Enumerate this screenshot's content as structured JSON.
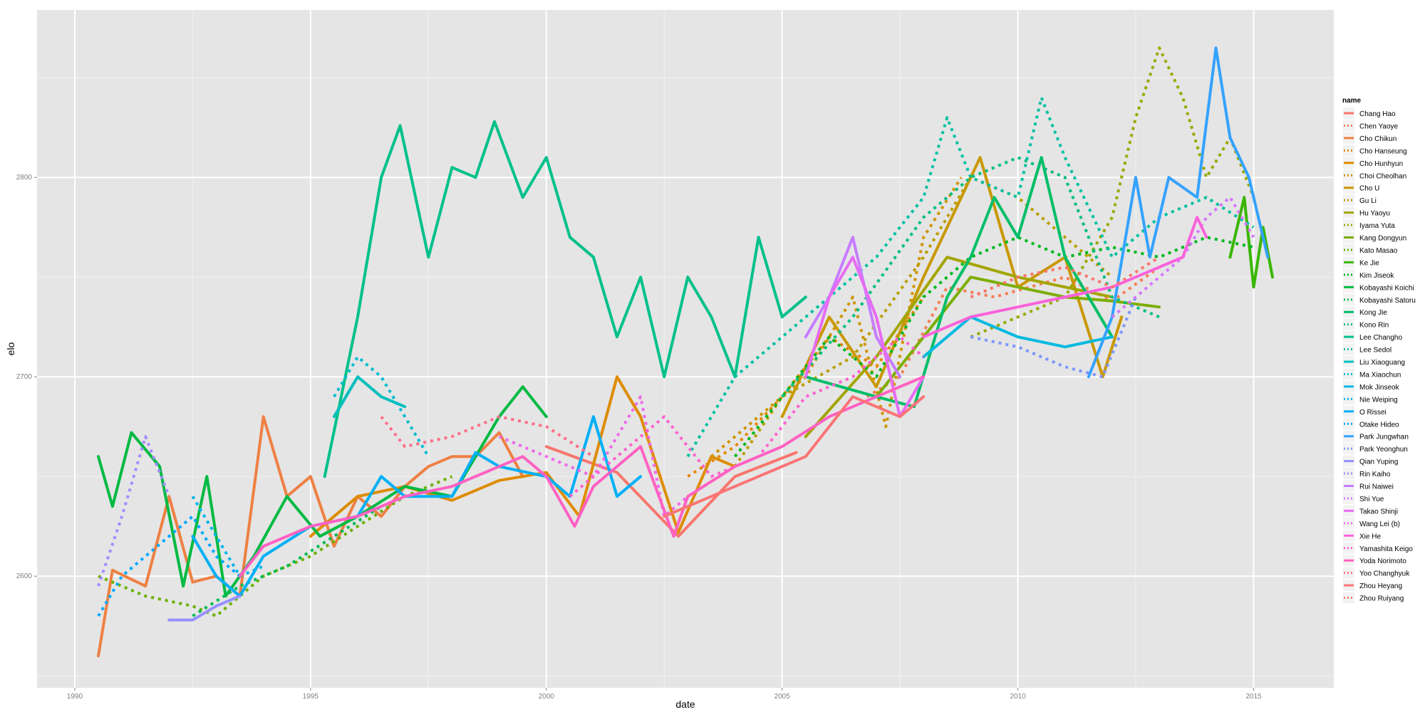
{
  "chart_data": {
    "type": "line",
    "xlabel": "date",
    "ylabel": "elo",
    "xlim": [
      1989.2,
      2016.7
    ],
    "ylim": [
      2544,
      2884
    ],
    "x_ticks": [
      1990,
      1995,
      2000,
      2005,
      2010,
      2015
    ],
    "x_tick_labels": [
      "1990",
      "1995",
      "2000",
      "2005",
      "2010",
      "2015"
    ],
    "y_ticks": [
      2600,
      2700,
      2800
    ],
    "y_tick_labels": [
      "2600",
      "2700",
      "2800"
    ],
    "grid": true,
    "legend": {
      "title": "name",
      "placement": "right"
    },
    "series": [
      {
        "name": "Chang Hao",
        "color": "#F8766D",
        "dashed": false,
        "x": [
          2000.0,
          2001.5,
          2002.8,
          2004.0,
          2005.3
        ],
        "y": [
          2665,
          2652,
          2620,
          2650,
          2662
        ]
      },
      {
        "name": "Chen Yaoye",
        "color": "#F57E56",
        "dashed": true,
        "x": [
          2006.8,
          2007.5,
          2008.5,
          2009.5,
          2011.0,
          2012.0,
          2013.0
        ],
        "y": [
          2690,
          2700,
          2745,
          2740,
          2750,
          2738,
          2755
        ]
      },
      {
        "name": "Cho Chikun",
        "color": "#EE8043",
        "dashed": false,
        "x": [
          1990.5,
          1990.8,
          1991.5,
          1992.0,
          1992.5,
          1993.0,
          1993.5,
          1994.0,
          1994.5,
          1995.0,
          1995.5,
          1996.0,
          1996.5,
          1997.0,
          1997.5,
          1998.0,
          1998.5,
          1999.0,
          1999.5
        ],
        "y": [
          2560,
          2603,
          2595,
          2640,
          2597,
          2600,
          2590,
          2680,
          2640,
          2650,
          2615,
          2640,
          2630,
          2645,
          2655,
          2660,
          2660,
          2672,
          2650
        ]
      },
      {
        "name": "Cho Hanseung",
        "color": "#E58700",
        "dashed": true,
        "x": [
          2003.0,
          2004.0,
          2005.0,
          2006.0,
          2007.0,
          2008.0
        ],
        "y": [
          2650,
          2665,
          2690,
          2720,
          2705,
          2740
        ]
      },
      {
        "name": "Cho Hunhyun",
        "color": "#DE8C00",
        "dashed": false,
        "x": [
          1995.0,
          1996.0,
          1997.0,
          1998.0,
          1999.0,
          2000.0,
          2000.7,
          2001.5,
          2002.0,
          2002.8,
          2003.5,
          2004.0
        ],
        "y": [
          2620,
          2640,
          2645,
          2638,
          2648,
          2652,
          2630,
          2700,
          2680,
          2622,
          2660,
          2655
        ]
      },
      {
        "name": "Choi Cheolhan",
        "color": "#D09400",
        "dashed": true,
        "x": [
          2003.5,
          2004.5,
          2005.5,
          2006.5,
          2007.2,
          2008.0,
          2008.8
        ],
        "y": [
          2660,
          2680,
          2700,
          2740,
          2675,
          2770,
          2800
        ]
      },
      {
        "name": "Cho U",
        "color": "#C99800",
        "dashed": false,
        "x": [
          2005.0,
          2006.0,
          2007.0,
          2008.0,
          2008.8,
          2009.2,
          2010.0,
          2011.0,
          2011.8,
          2012.2
        ],
        "y": [
          2680,
          2730,
          2695,
          2750,
          2790,
          2810,
          2745,
          2760,
          2700,
          2730
        ]
      },
      {
        "name": "Gu Li",
        "color": "#BA9E00",
        "dashed": true,
        "x": [
          2004.0,
          2005.0,
          2006.5,
          2008.0,
          2009.0,
          2010.0,
          2011.0,
          2012.0
        ],
        "y": [
          2655,
          2690,
          2710,
          2760,
          2800,
          2790,
          2770,
          2750
        ]
      },
      {
        "name": "Hu Yaoyu",
        "color": "#A3A500",
        "dashed": false,
        "x": [
          2005.5,
          2007.0,
          2008.5,
          2010.0,
          2011.0,
          2012.0
        ],
        "y": [
          2670,
          2710,
          2760,
          2750,
          2745,
          2740
        ]
      },
      {
        "name": "Iyama Yuta",
        "color": "#99A800",
        "dashed": true,
        "x": [
          2009.0,
          2010.0,
          2011.0,
          2012.0,
          2012.5,
          2013.0,
          2013.5,
          2014.0,
          2014.5,
          2015.0
        ],
        "y": [
          2720,
          2730,
          2740,
          2780,
          2830,
          2865,
          2840,
          2800,
          2820,
          2790
        ]
      },
      {
        "name": "Kang Dongyun",
        "color": "#7CAE00",
        "dashed": false,
        "x": [
          2007.0,
          2008.0,
          2009.0,
          2010.0,
          2011.0,
          2012.0,
          2013.0
        ],
        "y": [
          2690,
          2720,
          2750,
          2745,
          2740,
          2738,
          2735
        ]
      },
      {
        "name": "Kato Masao",
        "color": "#6AB100",
        "dashed": true,
        "x": [
          1990.5,
          1991.5,
          1992.5,
          1993.0,
          1994.0,
          1995.0,
          1996.0,
          1997.0,
          1998.0
        ],
        "y": [
          2600,
          2590,
          2585,
          2580,
          2600,
          2610,
          2625,
          2640,
          2650
        ]
      },
      {
        "name": "Ke Jie",
        "color": "#39B600",
        "dashed": false,
        "x": [
          2014.5,
          2014.8,
          2015.0,
          2015.2,
          2015.4
        ],
        "y": [
          2760,
          2790,
          2745,
          2775,
          2750
        ]
      },
      {
        "name": "Kim Jiseok",
        "color": "#00B81F",
        "dashed": true,
        "x": [
          2004.0,
          2005.0,
          2006.0,
          2007.0,
          2008.0,
          2009.0,
          2010.0,
          2011.0,
          2012.0,
          2013.0,
          2014.0,
          2015.0
        ],
        "y": [
          2660,
          2690,
          2720,
          2700,
          2740,
          2760,
          2770,
          2760,
          2765,
          2760,
          2770,
          2765
        ]
      },
      {
        "name": "Kobayashi Koichi",
        "color": "#00BA42",
        "dashed": false,
        "x": [
          1990.5,
          1990.8,
          1991.2,
          1991.8,
          1992.3,
          1992.8,
          1993.2,
          1993.8,
          1994.5,
          1995.2,
          1996.0,
          1997.0,
          1998.0,
          1999.0,
          1999.5,
          2000.0
        ],
        "y": [
          2660,
          2635,
          2672,
          2655,
          2595,
          2650,
          2590,
          2610,
          2640,
          2620,
          2630,
          2645,
          2640,
          2680,
          2695,
          2680
        ]
      },
      {
        "name": "Kobayashi Satoru",
        "color": "#00BC56",
        "dashed": true,
        "x": [
          1992.5,
          1993.5,
          1994.5,
          1995.5,
          1996.5
        ],
        "y": [
          2580,
          2595,
          2605,
          2620,
          2635
        ]
      },
      {
        "name": "Kong Jie",
        "color": "#00BE67",
        "dashed": false,
        "x": [
          2005.5,
          2007.0,
          2007.8,
          2008.5,
          2009.0,
          2009.5,
          2010.0,
          2010.5,
          2011.0,
          2011.5,
          2012.0
        ],
        "y": [
          2700,
          2690,
          2685,
          2740,
          2760,
          2790,
          2770,
          2810,
          2760,
          2740,
          2720
        ]
      },
      {
        "name": "Kono Rin",
        "color": "#00BF7D",
        "dashed": true,
        "x": [
          2005.0,
          2006.5,
          2008.0,
          2009.0,
          2010.0,
          2011.0,
          2012.0,
          2013.0
        ],
        "y": [
          2690,
          2730,
          2780,
          2800,
          2810,
          2800,
          2740,
          2730
        ]
      },
      {
        "name": "Lee Changho",
        "color": "#00C08B",
        "dashed": false,
        "x": [
          1995.3,
          1996.0,
          1996.5,
          1996.9,
          1997.5,
          1998.0,
          1998.5,
          1998.9,
          1999.5,
          2000.0,
          2000.5,
          2001.0,
          2001.5,
          2002.0,
          2002.5,
          2003.0,
          2003.5,
          2004.0,
          2004.5,
          2005.0,
          2005.5
        ],
        "y": [
          2650,
          2730,
          2800,
          2826,
          2760,
          2805,
          2800,
          2828,
          2790,
          2810,
          2770,
          2760,
          2720,
          2750,
          2700,
          2750,
          2730,
          2700,
          2770,
          2730,
          2740
        ]
      },
      {
        "name": "Lee Sedol",
        "color": "#00C1A3",
        "dashed": true,
        "x": [
          2003.0,
          2004.0,
          2005.0,
          2006.0,
          2007.0,
          2008.0,
          2008.5,
          2009.0,
          2010.0,
          2010.5,
          2011.0,
          2012.0,
          2013.0,
          2014.0,
          2015.0
        ],
        "y": [
          2660,
          2700,
          2720,
          2740,
          2760,
          2790,
          2830,
          2800,
          2790,
          2840,
          2810,
          2760,
          2780,
          2790,
          2775
        ]
      },
      {
        "name": "Liu Xiaoguang",
        "color": "#00BFBD",
        "dashed": false,
        "x": [
          1995.5,
          1996.0,
          1996.5,
          1997.0
        ],
        "y": [
          2680,
          2700,
          2690,
          2685
        ]
      },
      {
        "name": "Ma Xiaochun",
        "color": "#00BDD0",
        "dashed": true,
        "x": [
          1995.5,
          1996.0,
          1996.5,
          1997.0,
          1997.5
        ],
        "y": [
          2690,
          2710,
          2700,
          2680,
          2660
        ]
      },
      {
        "name": "Mok Jinseok",
        "color": "#00BAE0",
        "dashed": false,
        "x": [
          2008.0,
          2009.0,
          2010.0,
          2011.0,
          2012.0
        ],
        "y": [
          2710,
          2730,
          2720,
          2715,
          2720
        ]
      },
      {
        "name": "Nie Weiping",
        "color": "#00B6EB",
        "dashed": true,
        "x": [
          1992.5,
          1993.0,
          1993.5,
          1994.0
        ],
        "y": [
          2640,
          2620,
          2600,
          2605
        ]
      },
      {
        "name": "O Rissei",
        "color": "#00B0F6",
        "dashed": false,
        "x": [
          1992.5,
          1993.0,
          1993.5,
          1994.0,
          1995.0,
          1996.0,
          1996.5,
          1997.0,
          1998.0,
          1998.5,
          1999.0,
          2000.0,
          2000.5,
          2001.0,
          2001.5,
          2002.0
        ],
        "y": [
          2620,
          2600,
          2590,
          2610,
          2625,
          2630,
          2650,
          2640,
          2640,
          2662,
          2655,
          2650,
          2640,
          2680,
          2640,
          2650
        ]
      },
      {
        "name": "Otake Hideo",
        "color": "#00A9FF",
        "dashed": true,
        "x": [
          1990.5,
          1991.0,
          1991.5,
          1992.0,
          1992.5,
          1993.0,
          1993.5
        ],
        "y": [
          2580,
          2600,
          2610,
          2620,
          2630,
          2610,
          2600
        ]
      },
      {
        "name": "Park Jungwhan",
        "color": "#35A2FF",
        "dashed": false,
        "x": [
          2011.5,
          2012.0,
          2012.5,
          2012.8,
          2013.2,
          2013.8,
          2014.2,
          2014.5,
          2014.9,
          2015.3
        ],
        "y": [
          2700,
          2730,
          2800,
          2760,
          2800,
          2790,
          2865,
          2820,
          2800,
          2760
        ]
      },
      {
        "name": "Park Yeonghun",
        "color": "#7C96FF",
        "dashed": true,
        "x": [
          2009.0,
          2010.0,
          2011.0,
          2011.8,
          2012.5
        ],
        "y": [
          2720,
          2715,
          2705,
          2700,
          2740
        ]
      },
      {
        "name": "Qian Yuping",
        "color": "#9590FF",
        "dashed": false,
        "x": [
          1992.0,
          1992.5,
          1993.0,
          1993.5
        ],
        "y": [
          2578,
          2578,
          2585,
          2590
        ]
      },
      {
        "name": "Rin Kaiho",
        "color": "#A58AFF",
        "dashed": true,
        "x": [
          1990.5,
          1991.0,
          1991.5,
          1992.0
        ],
        "y": [
          2595,
          2630,
          2670,
          2640
        ]
      },
      {
        "name": "Rui Naiwei",
        "color": "#C77CFF",
        "dashed": false,
        "x": [
          2005.5,
          2006.0,
          2006.5,
          2007.0,
          2007.5
        ],
        "y": [
          2720,
          2740,
          2770,
          2720,
          2700
        ]
      },
      {
        "name": "Shi Yue",
        "color": "#D575FE",
        "dashed": true,
        "x": [
          2012.0,
          2012.5,
          2013.0,
          2013.5,
          2014.0,
          2014.5,
          2015.0
        ],
        "y": [
          2730,
          2740,
          2750,
          2760,
          2780,
          2790,
          2770
        ]
      },
      {
        "name": "Takao Shinji",
        "color": "#E76BF3",
        "dashed": false,
        "x": [
          2005.5,
          2006.0,
          2006.5,
          2007.0,
          2007.5,
          2008.0
        ],
        "y": [
          2700,
          2740,
          2760,
          2730,
          2680,
          2700
        ]
      },
      {
        "name": "Wang Lei (b)",
        "color": "#EF67EB",
        "dashed": true,
        "x": [
          1999.0,
          2000.0,
          2001.0,
          2002.0,
          2002.5,
          2003.0
        ],
        "y": [
          2670,
          2660,
          2650,
          2690,
          2630,
          2640
        ]
      },
      {
        "name": "Xie He",
        "color": "#FA62DB",
        "dashed": false,
        "x": [
          2008.0,
          2009.0,
          2010.0,
          2011.0,
          2012.0,
          2013.0,
          2013.5,
          2013.8,
          2014.0
        ],
        "y": [
          2720,
          2730,
          2735,
          2740,
          2745,
          2755,
          2760,
          2780,
          2770
        ]
      },
      {
        "name": "Yamashita Keigo",
        "color": "#FD61D1",
        "dashed": true,
        "x": [
          2000.5,
          2001.5,
          2002.5,
          2003.5,
          2004.5,
          2005.5,
          2006.5,
          2007.5,
          2008.0
        ],
        "y": [
          2640,
          2660,
          2680,
          2650,
          2660,
          2690,
          2700,
          2720,
          2710
        ]
      },
      {
        "name": "Yoda Norimoto",
        "color": "#FF61C3",
        "dashed": false,
        "x": [
          1993.5,
          1994.0,
          1995.0,
          1996.0,
          1997.0,
          1998.0,
          1999.0,
          1999.5,
          2000.0,
          2000.6,
          2001.0,
          2002.0,
          2002.7,
          2003.0,
          2004.0,
          2005.0,
          2006.0,
          2007.0,
          2008.0
        ],
        "y": [
          2600,
          2615,
          2625,
          2630,
          2640,
          2645,
          2655,
          2660,
          2650,
          2625,
          2645,
          2665,
          2620,
          2640,
          2655,
          2665,
          2680,
          2690,
          2700
        ]
      },
      {
        "name": "Yoo Changhyuk",
        "color": "#FE6E8A",
        "dashed": true,
        "x": [
          1996.5,
          1997.0,
          1998.0,
          1999.0,
          2000.0,
          2001.0
        ],
        "y": [
          2680,
          2665,
          2670,
          2680,
          2675,
          2660
        ]
      },
      {
        "name": "Zhou Heyang",
        "color": "#FA7476",
        "dashed": false,
        "x": [
          2002.5,
          2003.5,
          2004.5,
          2005.5,
          2006.5,
          2007.5,
          2008.0
        ],
        "y": [
          2630,
          2640,
          2650,
          2660,
          2690,
          2680,
          2690
        ]
      },
      {
        "name": "Zhou Ruiyang",
        "color": "#F8766D",
        "dashed": true,
        "x": [
          2009.0,
          2010.0,
          2011.0,
          2012.0,
          2013.0
        ],
        "y": [
          2740,
          2750,
          2755,
          2745,
          2760
        ]
      }
    ]
  }
}
